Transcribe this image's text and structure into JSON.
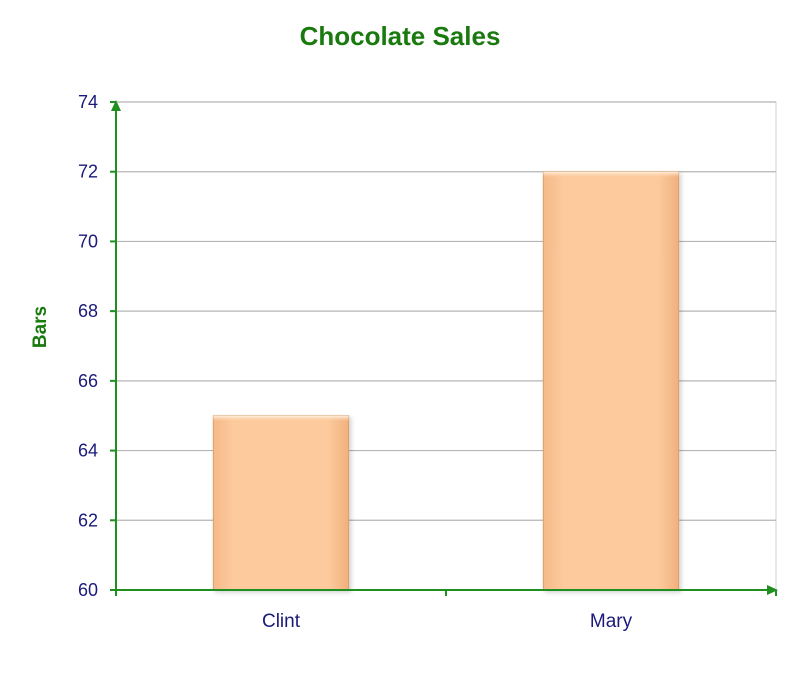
{
  "chart_data": {
    "type": "bar",
    "title": "Chocolate Sales",
    "xlabel": "",
    "ylabel": "Bars",
    "categories": [
      "Clint",
      "Mary"
    ],
    "values": [
      65,
      72
    ],
    "ylim": [
      60,
      74
    ],
    "yticks": [
      60,
      62,
      64,
      66,
      68,
      70,
      72,
      74
    ],
    "ytick_labels": [
      "60",
      "62",
      "64",
      "66",
      "68",
      "70",
      "72",
      "74"
    ],
    "grid": true,
    "legend": "none"
  },
  "colors": {
    "title": "#1a7a10",
    "axis": "#1f8f1f",
    "tick_text": "#1a1a7a",
    "grid": "#b5b5b5",
    "bar_fill": "#fcc99b",
    "bar_edge": "#d9a06c"
  }
}
